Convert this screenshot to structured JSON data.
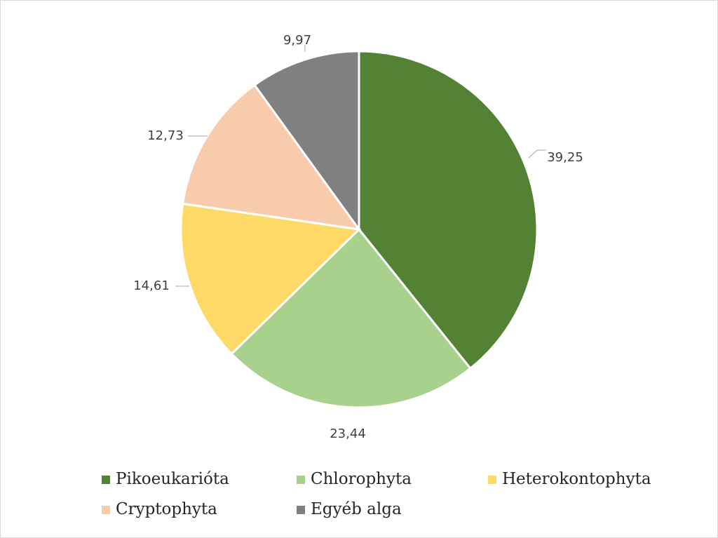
{
  "chart_data": {
    "type": "pie",
    "categories": [
      "Pikoeukarióta",
      "Chlorophyta",
      "Heterokontophyta",
      "Cryptophyta",
      "Egyéb alga"
    ],
    "values": [
      39.25,
      23.44,
      14.61,
      12.73,
      9.97
    ],
    "data_labels": [
      "39,25",
      "23,44",
      "14,61",
      "12,73",
      "9,97"
    ],
    "colors": [
      "#548235",
      "#a9d18e",
      "#ffd966",
      "#f8cbad",
      "#808080"
    ],
    "legend": {
      "placement": "bottom",
      "entries": [
        "Pikoeukarióta",
        "Chlorophyta",
        "Heterokontophyta",
        "Cryptophyta",
        "Egyéb alga"
      ]
    }
  }
}
